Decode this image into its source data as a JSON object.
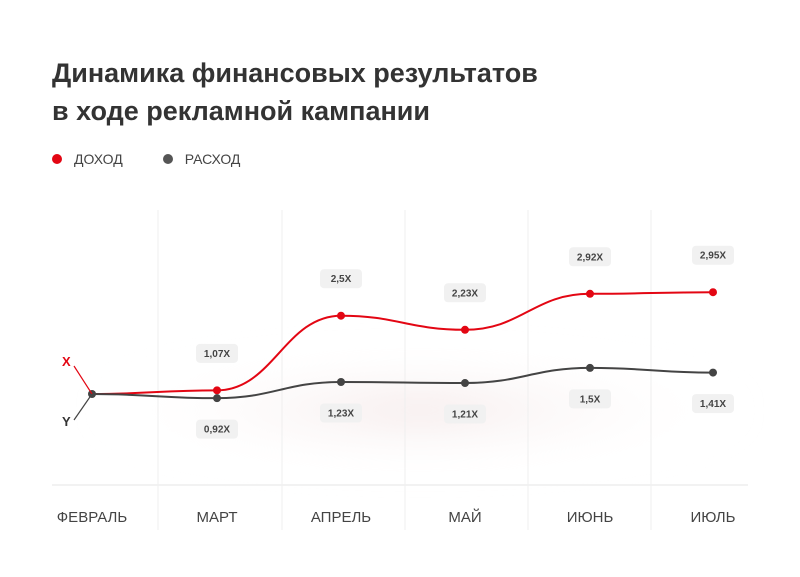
{
  "title_line1": "Динамика финансовых результатов",
  "title_line2": "в ходе рекламной кампании",
  "legend": [
    {
      "label": "ДОХОД",
      "color": "#e30613"
    },
    {
      "label": "РАСХОД",
      "color": "#555555"
    }
  ],
  "axis_letters": {
    "top": "X",
    "bottom": "Y",
    "top_color": "#e30613",
    "bottom_color": "#333333"
  },
  "chart_data": {
    "type": "line",
    "categories": [
      "ФЕВРАЛЬ",
      "МАРТ",
      "АПРЕЛЬ",
      "МАЙ",
      "ИЮНЬ",
      "ИЮЛЬ"
    ],
    "series": [
      {
        "name": "ДОХОД",
        "color": "#e30613",
        "values": [
          null,
          1.07,
          2.5,
          2.23,
          2.92,
          2.95
        ],
        "labels": [
          "",
          "1,07X",
          "2,5X",
          "2,23X",
          "2,92X",
          "2,95X"
        ]
      },
      {
        "name": "РАСХОД",
        "color": "#444444",
        "values": [
          null,
          0.92,
          1.23,
          1.21,
          1.5,
          1.41
        ],
        "labels": [
          "",
          "0,92X",
          "1,23X",
          "1,21X",
          "1,5X",
          "1,41X"
        ]
      }
    ],
    "start_value": 1.0,
    "ylim": [
      0,
      3.5
    ],
    "grid": "vertical",
    "legend_position": "top-left"
  }
}
